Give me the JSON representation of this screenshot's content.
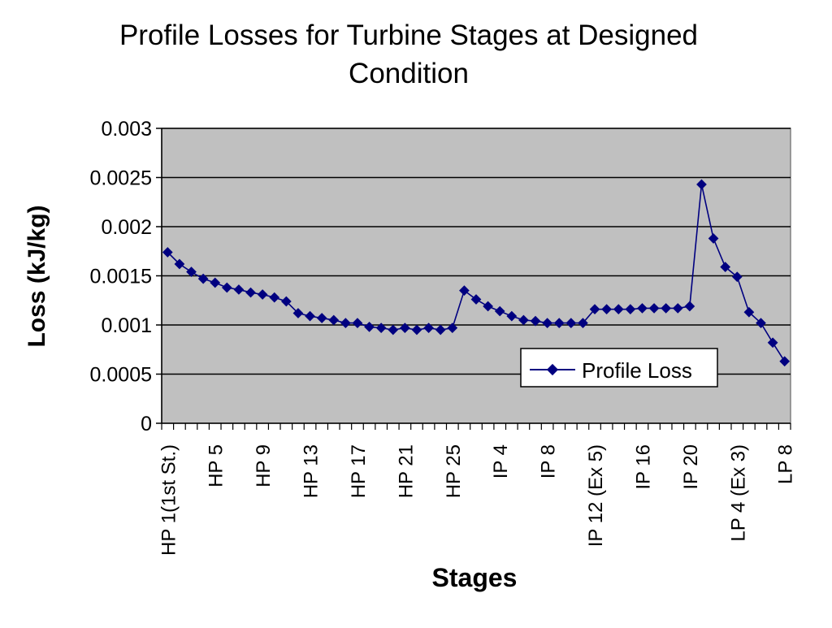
{
  "chart_data": {
    "type": "line",
    "title_lines": [
      "Profile Losses for Turbine Stages at Designed",
      "Condition"
    ],
    "xlabel": "Stages",
    "ylabel": "Loss (kJ/kg)",
    "ylim": [
      0,
      0.003
    ],
    "y_ticks": [
      "0",
      "0.0005",
      "0.001",
      "0.0015",
      "0.002",
      "0.0025",
      "0.003"
    ],
    "grid": true,
    "plot_background": "#c0c0c0",
    "series_color": "#000080",
    "legend_position": "right, lower-middle",
    "x_tick_labels": [
      {
        "index": 0,
        "label": "HP 1(1st St.)"
      },
      {
        "index": 4,
        "label": "HP 5"
      },
      {
        "index": 8,
        "label": "HP 9"
      },
      {
        "index": 12,
        "label": "HP 13"
      },
      {
        "index": 16,
        "label": "HP 17"
      },
      {
        "index": 20,
        "label": "HP 21"
      },
      {
        "index": 24,
        "label": "HP 25"
      },
      {
        "index": 28,
        "label": "IP 4"
      },
      {
        "index": 32,
        "label": "IP 8"
      },
      {
        "index": 36,
        "label": "IP 12 (Ex 5)"
      },
      {
        "index": 40,
        "label": "IP 16"
      },
      {
        "index": 44,
        "label": "IP 20"
      },
      {
        "index": 48,
        "label": "LP 4 (Ex 3)"
      },
      {
        "index": 52,
        "label": "LP 8"
      }
    ],
    "series": [
      {
        "name": "Profile Loss",
        "values": [
          0.00174,
          0.00162,
          0.00154,
          0.00147,
          0.00143,
          0.00138,
          0.00136,
          0.00133,
          0.00131,
          0.00128,
          0.00124,
          0.00112,
          0.00109,
          0.00107,
          0.00105,
          0.00102,
          0.00102,
          0.00098,
          0.00097,
          0.00095,
          0.00097,
          0.00095,
          0.00097,
          0.00095,
          0.00097,
          0.00135,
          0.00126,
          0.00119,
          0.00114,
          0.00109,
          0.00105,
          0.00104,
          0.00102,
          0.00102,
          0.00102,
          0.00102,
          0.00116,
          0.00116,
          0.00116,
          0.00116,
          0.00117,
          0.00117,
          0.00117,
          0.00117,
          0.00119,
          0.00243,
          0.00188,
          0.00159,
          0.00149,
          0.00113,
          0.00102,
          0.00082,
          0.00063
        ]
      }
    ]
  }
}
